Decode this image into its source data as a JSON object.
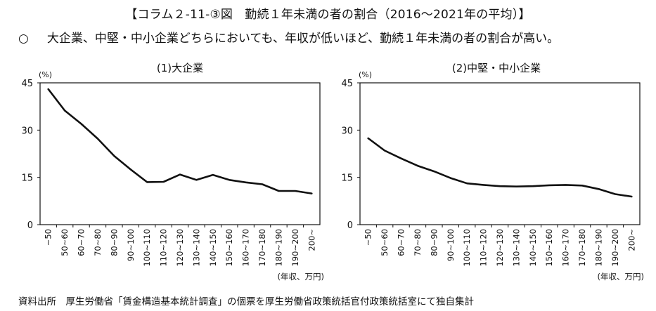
{
  "header": {
    "title": "【コラム２-11-③図　勤続１年未満の者の割合（2016～2021年の平均）】",
    "bullet": "○",
    "subtitle": "大企業、中堅・中小企業どちらにおいても、年収が低いほど、勤続１年未満の者の割合が高い。"
  },
  "footer": {
    "source": "資料出所　厚生労働省「賃金構造基本統計調査」の個票を厚生労働省政策統括官付政策統括室にて独自集計"
  },
  "chart_data": [
    {
      "type": "line",
      "title": "(1)大企業",
      "ylabel": "(%)",
      "xlabel": "(年収、万円)",
      "ylim": [
        0,
        45
      ],
      "yticks": [
        "0",
        "15",
        "30",
        "45"
      ],
      "categories": [
        "~50",
        "50~60",
        "60~70",
        "70~80",
        "80~90",
        "90~100",
        "100~110",
        "110~120",
        "120~130",
        "130~140",
        "140~150",
        "150~160",
        "160~170",
        "170~180",
        "180~190",
        "190~200",
        "200~"
      ],
      "values": [
        43,
        36.2,
        32,
        27.3,
        21.8,
        17.5,
        13.5,
        13.6,
        15.9,
        14.2,
        15.8,
        14.2,
        13.4,
        12.8,
        10.7,
        10.7,
        9.9
      ]
    },
    {
      "type": "line",
      "title": "(2)中堅・中小企業",
      "ylabel": "(%)",
      "xlabel": "(年収、万円)",
      "ylim": [
        0,
        45
      ],
      "yticks": [
        "0",
        "15",
        "30",
        "45"
      ],
      "categories": [
        "~50",
        "50~60",
        "60~70",
        "70~80",
        "80~90",
        "90~100",
        "100~110",
        "110~120",
        "120~130",
        "130~140",
        "140~150",
        "150~160",
        "160~170",
        "170~180",
        "180~190",
        "190~200",
        "200~"
      ],
      "values": [
        27.4,
        23.5,
        21,
        18.7,
        16.9,
        14.8,
        13.1,
        12.6,
        12.2,
        12.1,
        12.2,
        12.5,
        12.6,
        12.4,
        11.3,
        9.7,
        8.9
      ]
    }
  ]
}
